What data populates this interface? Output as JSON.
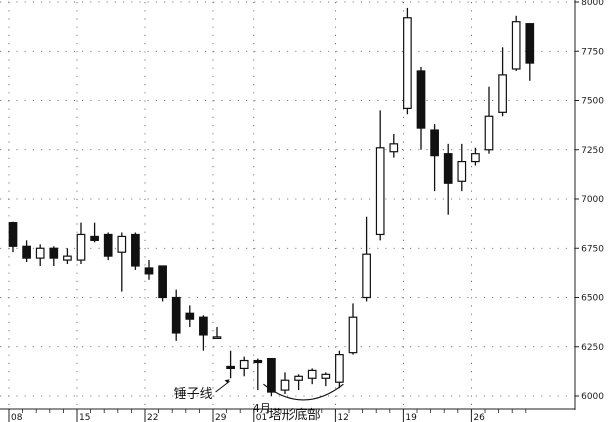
{
  "chart_data": {
    "type": "candlestick",
    "ylim": [
      5975,
      8000
    ],
    "y_ticks": [
      6000,
      6250,
      6500,
      6750,
      7000,
      7250,
      7500,
      7750,
      8000
    ],
    "grid": true,
    "x_tick_labels": [
      {
        "label": "08",
        "index": 0
      },
      {
        "label": "15",
        "index": 5
      },
      {
        "label": "22",
        "index": 10
      },
      {
        "label": "29",
        "index": 15
      },
      {
        "label": "01",
        "index": 18
      },
      {
        "label": "12",
        "index": 24
      },
      {
        "label": "19",
        "index": 29
      },
      {
        "label": "26",
        "index": 34
      }
    ],
    "month_label": {
      "text": "4月",
      "index": 18
    },
    "candles": [
      {
        "o": 6880,
        "h": 6885,
        "l": 6730,
        "c": 6760
      },
      {
        "o": 6760,
        "h": 6790,
        "l": 6680,
        "c": 6700
      },
      {
        "o": 6700,
        "h": 6770,
        "l": 6660,
        "c": 6750
      },
      {
        "o": 6750,
        "h": 6760,
        "l": 6660,
        "c": 6700
      },
      {
        "o": 6690,
        "h": 6750,
        "l": 6670,
        "c": 6710
      },
      {
        "o": 6690,
        "h": 6880,
        "l": 6670,
        "c": 6820
      },
      {
        "o": 6810,
        "h": 6880,
        "l": 6780,
        "c": 6790
      },
      {
        "o": 6820,
        "h": 6830,
        "l": 6690,
        "c": 6710
      },
      {
        "o": 6730,
        "h": 6830,
        "l": 6530,
        "c": 6810
      },
      {
        "o": 6820,
        "h": 6830,
        "l": 6640,
        "c": 6660
      },
      {
        "o": 6650,
        "h": 6690,
        "l": 6590,
        "c": 6620
      },
      {
        "o": 6660,
        "h": 6660,
        "l": 6480,
        "c": 6500
      },
      {
        "o": 6500,
        "h": 6540,
        "l": 6280,
        "c": 6320
      },
      {
        "o": 6420,
        "h": 6460,
        "l": 6350,
        "c": 6390
      },
      {
        "o": 6400,
        "h": 6410,
        "l": 6230,
        "c": 6310
      },
      {
        "o": 6300,
        "h": 6350,
        "l": 6290,
        "c": 6300
      },
      {
        "o": 6150,
        "h": 6230,
        "l": 6090,
        "c": 6140
      },
      {
        "o": 6140,
        "h": 6200,
        "l": 6100,
        "c": 6180
      },
      {
        "o": 6180,
        "h": 6190,
        "l": 6030,
        "c": 6170
      },
      {
        "o": 6190,
        "h": 6190,
        "l": 6000,
        "c": 6020
      },
      {
        "o": 6030,
        "h": 6120,
        "l": 6010,
        "c": 6080
      },
      {
        "o": 6080,
        "h": 6110,
        "l": 6030,
        "c": 6100
      },
      {
        "o": 6090,
        "h": 6140,
        "l": 6060,
        "c": 6130
      },
      {
        "o": 6090,
        "h": 6120,
        "l": 6050,
        "c": 6110
      },
      {
        "o": 6070,
        "h": 6230,
        "l": 6040,
        "c": 6210
      },
      {
        "o": 6220,
        "h": 6470,
        "l": 6210,
        "c": 6400
      },
      {
        "o": 6500,
        "h": 6910,
        "l": 6480,
        "c": 6720
      },
      {
        "o": 6820,
        "h": 7450,
        "l": 6790,
        "c": 7260
      },
      {
        "o": 7240,
        "h": 7330,
        "l": 7210,
        "c": 7280
      },
      {
        "o": 7460,
        "h": 7970,
        "l": 7430,
        "c": 7920
      },
      {
        "o": 7650,
        "h": 7670,
        "l": 7250,
        "c": 7360
      },
      {
        "o": 7350,
        "h": 7380,
        "l": 7040,
        "c": 7220
      },
      {
        "o": 7230,
        "h": 7280,
        "l": 6920,
        "c": 7080
      },
      {
        "o": 7090,
        "h": 7280,
        "l": 7040,
        "c": 7190
      },
      {
        "o": 7190,
        "h": 7260,
        "l": 7170,
        "c": 7230
      },
      {
        "o": 7250,
        "h": 7570,
        "l": 7230,
        "c": 7420
      },
      {
        "o": 7440,
        "h": 7770,
        "l": 7420,
        "c": 7630
      },
      {
        "o": 7660,
        "h": 7930,
        "l": 7650,
        "c": 7900
      },
      {
        "o": 7890,
        "h": 7890,
        "l": 7600,
        "c": 7690
      }
    ],
    "annotations": [
      {
        "text": "锤子线",
        "index": 16
      },
      {
        "text": "塔形底部",
        "index": 21
      }
    ]
  }
}
